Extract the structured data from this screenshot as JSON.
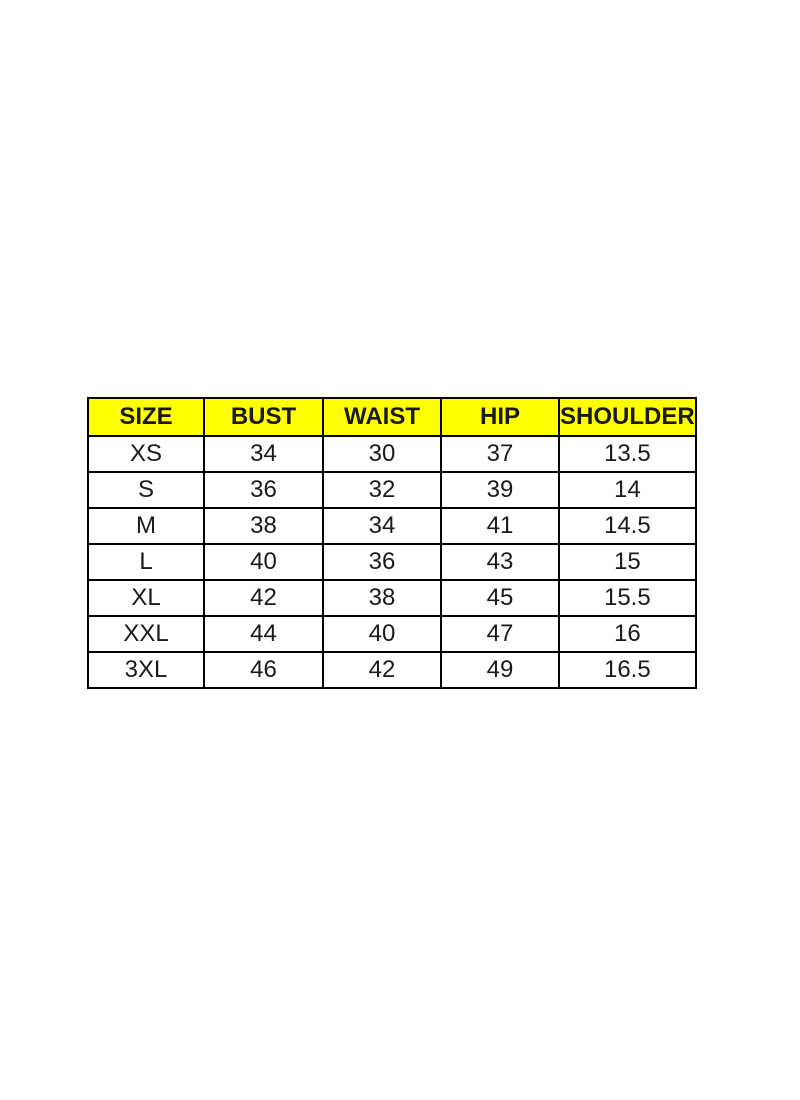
{
  "page": {
    "background": "#ffffff"
  },
  "chart_data": {
    "type": "table",
    "title": "",
    "header_bg": "#ffff00",
    "border_color": "#000000",
    "text_color": "#1a1a1a",
    "columns": [
      "SIZE",
      "BUST",
      "WAIST",
      "HIP",
      "SHOULDER"
    ],
    "rows": [
      [
        "XS",
        "34",
        "30",
        "37",
        "13.5"
      ],
      [
        "S",
        "36",
        "32",
        "39",
        "14"
      ],
      [
        "M",
        "38",
        "34",
        "41",
        "14.5"
      ],
      [
        "L",
        "40",
        "36",
        "43",
        "15"
      ],
      [
        "XL",
        "42",
        "38",
        "45",
        "15.5"
      ],
      [
        "XXL",
        "44",
        "40",
        "47",
        "16"
      ],
      [
        "3XL",
        "46",
        "42",
        "49",
        "16.5"
      ]
    ]
  }
}
